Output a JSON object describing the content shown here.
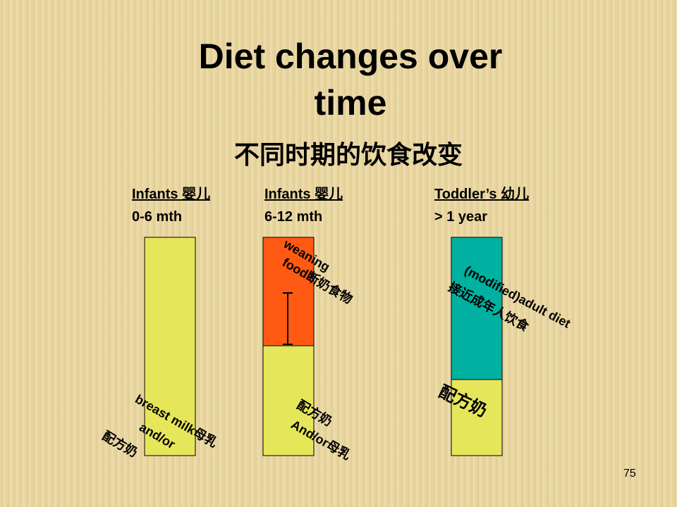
{
  "title": {
    "lines": [
      "Diet changes over",
      "time"
    ]
  },
  "subtitle": "不同时期的饮食改变",
  "columns": [
    {
      "heading": "Infants 婴儿",
      "age": "0-6 mth",
      "bottom_label": [
        "breast milk母乳",
        "and/or",
        "配方奶"
      ]
    },
    {
      "heading": "Infants 婴儿",
      "age": "6-12 mth",
      "top_label": [
        "weaning",
        "food断奶食物"
      ],
      "bottom_label": [
        "配方奶",
        "And/or母乳"
      ]
    },
    {
      "heading": "Toddler’s 幼儿",
      "age": "> 1 year",
      "top_label": [
        "(modified)adult diet",
        "接近成年人饮食"
      ],
      "bottom_label": [
        "配方奶"
      ]
    }
  ],
  "page_number": "75"
}
